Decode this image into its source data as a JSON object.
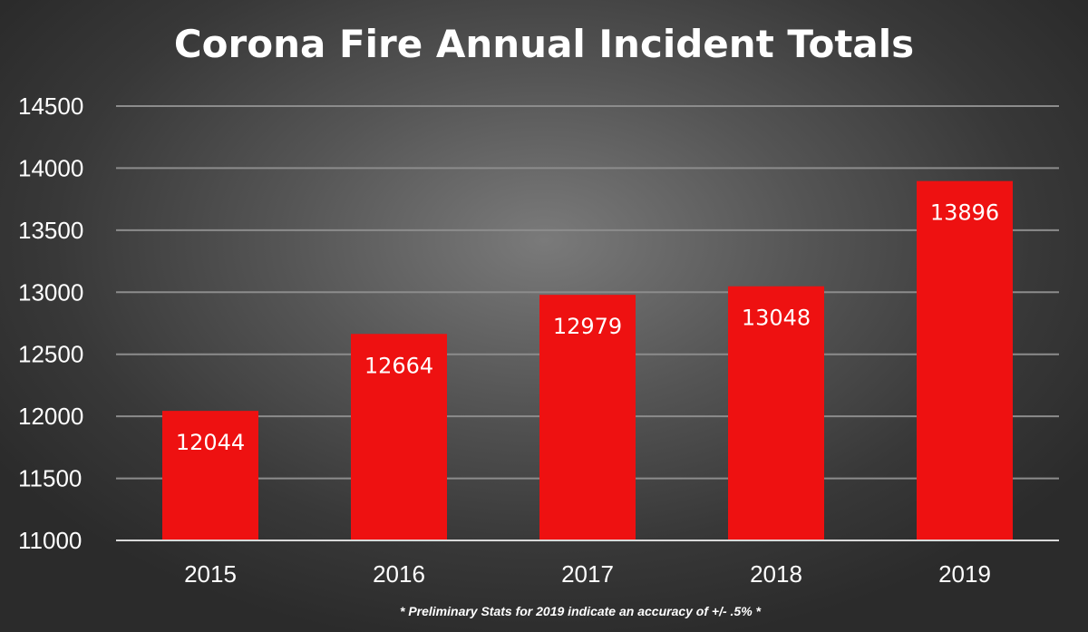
{
  "chart_data": {
    "type": "bar",
    "title": "Corona Fire Annual Incident Totals",
    "xlabel": "",
    "ylabel": "",
    "categories": [
      "2015",
      "2016",
      "2017",
      "2018",
      "2019"
    ],
    "values": [
      12044,
      12664,
      12979,
      13048,
      13896
    ],
    "data_labels": [
      "12044",
      "12664",
      "12979",
      "13048",
      "13896"
    ],
    "ylim": [
      11000,
      14500
    ],
    "yticks": [
      11000,
      11500,
      12000,
      12500,
      13000,
      13500,
      14000,
      14500
    ],
    "ytick_labels": [
      "11000",
      "11500",
      "12000",
      "12500",
      "13000",
      "13500",
      "14000",
      "14500"
    ],
    "grid": true,
    "bar_color": "#ee1111",
    "grid_color": "#8c8c8c",
    "footnote": "*   Preliminary Stats for 2019 indicate an accuracy of +/- .5% *"
  }
}
